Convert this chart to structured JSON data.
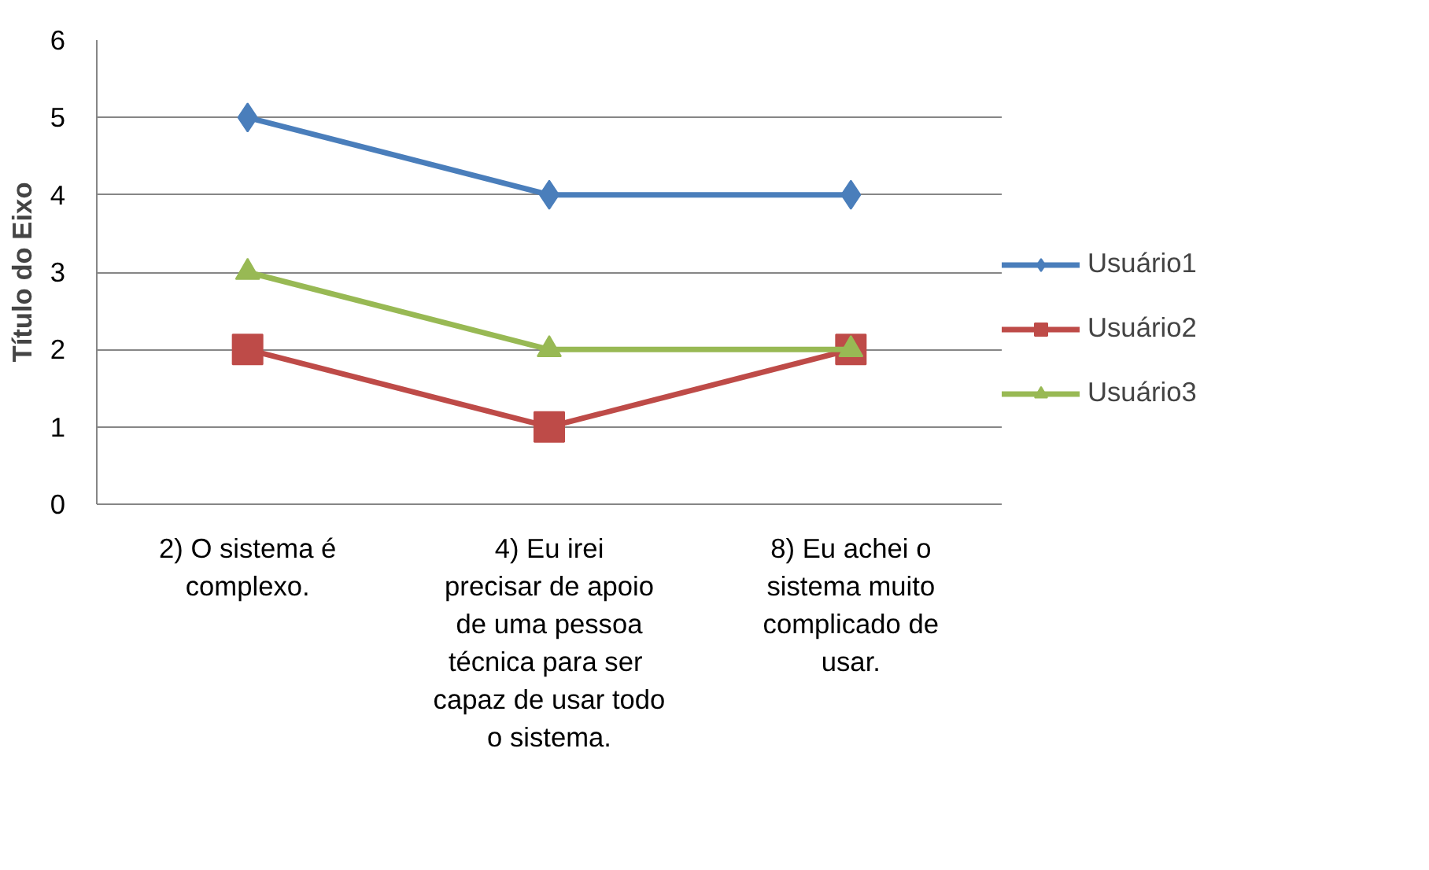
{
  "chart_data": {
    "type": "line",
    "ylabel": "Título do Eixo",
    "categories": [
      "2) O sistema é complexo.",
      "4) Eu irei precisar de apoio de uma pessoa técnica para  ser capaz de usar todo o sistema.",
      "8) Eu achei o sistema muito complicado de usar."
    ],
    "series": [
      {
        "name": "Usuário1",
        "color": "#4a7ebb",
        "marker": "diamond",
        "values": [
          5,
          4,
          4
        ]
      },
      {
        "name": "Usuário2",
        "color": "#be4b48",
        "marker": "square",
        "values": [
          2,
          1,
          2
        ]
      },
      {
        "name": "Usuário3",
        "color": "#98b954",
        "marker": "triangle",
        "values": [
          3,
          2,
          2
        ]
      }
    ],
    "ylim": [
      0,
      6
    ],
    "yticks": [
      0,
      1,
      2,
      3,
      4,
      5,
      6
    ],
    "grid": "y",
    "legend": "right",
    "line_style": "solid"
  }
}
